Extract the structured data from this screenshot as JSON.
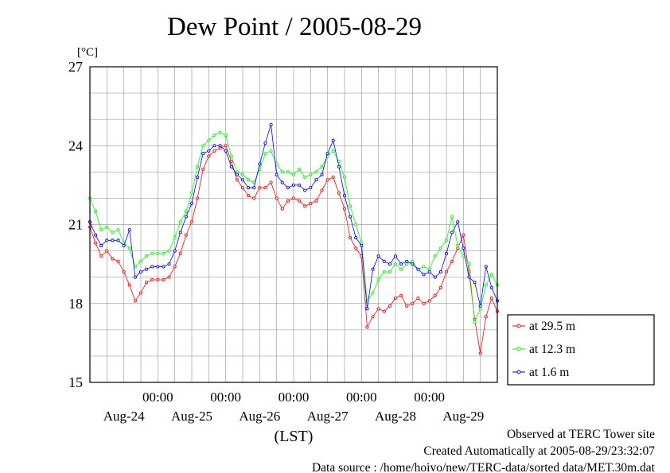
{
  "colors": {
    "series_29_5": "#ff0000",
    "series_12_3": "#00ff00",
    "series_1_6": "#0000ff",
    "grid": "#a0a0a0",
    "frame": "#000000"
  },
  "footer": {
    "line1": "Observed at TERC Tower site",
    "line2": "Created Automatically at 2005-08-29/23:32:07",
    "line3": "Data source : /home/hoivo/new/TERC-data/sorted  data/MET.30m.dat"
  },
  "chart_data": {
    "type": "line",
    "title": "Dew Point / 2005-08-29",
    "ylabel": "[°C]",
    "xlabel": "(LST)",
    "ylim": [
      15,
      27
    ],
    "xlim": [
      0,
      6
    ],
    "yticks": [
      15,
      18,
      21,
      24,
      27
    ],
    "x_minor_gridlines": true,
    "y_minor_gridlines": true,
    "time_ticks": [
      {
        "x": 1,
        "label": "00:00"
      },
      {
        "x": 2,
        "label": "00:00"
      },
      {
        "x": 3,
        "label": "00:00"
      },
      {
        "x": 4,
        "label": "00:00"
      },
      {
        "x": 5,
        "label": "00:00"
      }
    ],
    "day_labels": [
      {
        "x": 0.5,
        "label": "Aug-24"
      },
      {
        "x": 1.5,
        "label": "Aug-25"
      },
      {
        "x": 2.5,
        "label": "Aug-26"
      },
      {
        "x": 3.5,
        "label": "Aug-27"
      },
      {
        "x": 4.5,
        "label": "Aug-28"
      },
      {
        "x": 5.5,
        "label": "Aug-29"
      }
    ],
    "legend_position": "right-bottom",
    "x": [
      0.0,
      0.0833,
      0.1667,
      0.25,
      0.3333,
      0.4167,
      0.5,
      0.5833,
      0.6667,
      0.75,
      0.8333,
      0.9167,
      1.0,
      1.0833,
      1.1667,
      1.25,
      1.3333,
      1.4167,
      1.5,
      1.5833,
      1.6667,
      1.75,
      1.8333,
      1.9167,
      2.0,
      2.0833,
      2.1667,
      2.25,
      2.3333,
      2.4167,
      2.5,
      2.5833,
      2.6667,
      2.75,
      2.8333,
      2.9167,
      3.0,
      3.0833,
      3.1667,
      3.25,
      3.3333,
      3.4167,
      3.5,
      3.5833,
      3.6667,
      3.75,
      3.8333,
      3.9167,
      4.0,
      4.0833,
      4.1667,
      4.25,
      4.3333,
      4.4167,
      4.5,
      4.5833,
      4.6667,
      4.75,
      4.8333,
      4.9167,
      5.0,
      5.0833,
      5.1667,
      5.25,
      5.3333,
      5.4167,
      5.5,
      5.5833,
      5.6667,
      5.75,
      5.8333,
      5.9167,
      6.0
    ],
    "series": [
      {
        "name": "at 29.5 m",
        "color": "#ff0000",
        "values": [
          20.9,
          20.3,
          19.8,
          20.0,
          19.7,
          19.6,
          19.2,
          18.7,
          18.1,
          18.4,
          18.8,
          18.9,
          18.9,
          18.9,
          19.0,
          19.4,
          19.9,
          20.6,
          21.1,
          22.0,
          23.1,
          23.6,
          23.8,
          23.9,
          24.0,
          23.4,
          22.7,
          22.4,
          22.1,
          22.0,
          22.4,
          22.4,
          22.6,
          22.0,
          21.6,
          21.9,
          22.0,
          21.9,
          21.7,
          21.8,
          21.9,
          22.3,
          22.7,
          22.8,
          22.2,
          21.6,
          20.5,
          20.1,
          19.8,
          17.1,
          17.5,
          17.8,
          17.7,
          17.9,
          18.2,
          18.3,
          17.9,
          18.0,
          18.2,
          18.0,
          18.1,
          18.3,
          18.6,
          19.2,
          19.6,
          20.1,
          20.6,
          19.2,
          17.4,
          16.1,
          17.5,
          18.2,
          17.7
        ]
      },
      {
        "name": "at 12.3 m",
        "color": "#00ff00",
        "values": [
          22.0,
          21.5,
          20.8,
          20.9,
          20.7,
          20.8,
          20.3,
          20.1,
          19.4,
          19.6,
          19.8,
          19.9,
          19.9,
          19.9,
          20.0,
          20.5,
          21.1,
          21.5,
          22.2,
          23.2,
          24.0,
          24.2,
          24.4,
          24.5,
          24.4,
          23.6,
          23.0,
          22.9,
          22.7,
          22.6,
          23.1,
          23.7,
          23.8,
          23.3,
          23.0,
          23.0,
          22.9,
          23.1,
          22.8,
          22.9,
          23.0,
          23.2,
          23.6,
          23.8,
          23.4,
          22.8,
          21.7,
          21.0,
          20.3,
          18.1,
          18.4,
          18.9,
          19.2,
          19.2,
          19.5,
          19.3,
          19.5,
          19.6,
          19.3,
          19.4,
          19.3,
          19.8,
          20.1,
          20.4,
          21.3,
          20.2,
          19.8,
          19.5,
          17.3,
          17.8,
          18.7,
          19.1,
          18.7
        ]
      },
      {
        "name": "at 1.6 m",
        "color": "#0000ff",
        "values": [
          21.1,
          20.6,
          20.2,
          20.4,
          20.4,
          20.4,
          20.2,
          20.8,
          19.0,
          19.2,
          19.3,
          19.4,
          19.4,
          19.4,
          19.5,
          20.0,
          20.7,
          21.3,
          21.8,
          22.8,
          23.7,
          23.8,
          24.0,
          24.0,
          23.8,
          23.2,
          22.9,
          22.7,
          22.4,
          22.4,
          23.3,
          24.1,
          24.8,
          22.9,
          22.6,
          22.4,
          22.5,
          22.5,
          22.3,
          22.4,
          22.7,
          22.9,
          23.7,
          24.2,
          23.2,
          22.1,
          21.3,
          20.5,
          20.2,
          17.8,
          19.3,
          19.8,
          19.6,
          19.5,
          19.8,
          19.5,
          19.6,
          19.5,
          19.3,
          19.1,
          19.2,
          19.0,
          19.2,
          19.9,
          20.7,
          21.1,
          20.1,
          19.0,
          18.8,
          17.9,
          19.4,
          18.6,
          18.1
        ]
      }
    ]
  }
}
